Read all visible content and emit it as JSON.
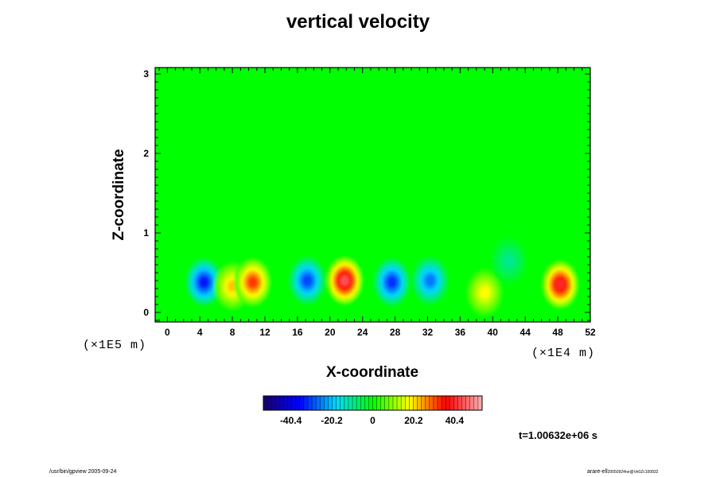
{
  "chart_data": {
    "type": "heatmap",
    "title": "vertical velocity",
    "xlabel": "X-coordinate",
    "ylabel": "Z-coordinate",
    "x_multiplier": "(×1E4 m)",
    "y_multiplier": "(×1E5 m)",
    "xlim": [
      -1.5,
      52
    ],
    "ylim": [
      -0.12,
      3.08
    ],
    "x_ticks": [
      0,
      4,
      8,
      12,
      16,
      20,
      24,
      28,
      32,
      36,
      40,
      44,
      48,
      52
    ],
    "y_ticks": [
      0,
      1,
      2,
      3
    ],
    "colorbar": {
      "ticks": [
        -40.4,
        -20.2,
        0,
        20.2,
        40.4
      ],
      "range": [
        -54,
        54
      ],
      "colors": [
        "#1a0066",
        "#0000ff",
        "#00d8ff",
        "#00ff00",
        "#ffff00",
        "#ff0000",
        "#ffb0b0"
      ]
    },
    "background_value": 0,
    "features": [
      {
        "x": 4.5,
        "z": 0.38,
        "value": -34
      },
      {
        "x": 8,
        "z": 0.33,
        "value": 22
      },
      {
        "x": 10.5,
        "z": 0.38,
        "value": 32
      },
      {
        "x": 17.2,
        "z": 0.4,
        "value": -30
      },
      {
        "x": 21.8,
        "z": 0.4,
        "value": 44
      },
      {
        "x": 27.6,
        "z": 0.38,
        "value": -32
      },
      {
        "x": 32.3,
        "z": 0.4,
        "value": -26
      },
      {
        "x": 39,
        "z": 0.25,
        "value": 18
      },
      {
        "x": 42,
        "z": 0.65,
        "value": -10
      },
      {
        "x": 48.3,
        "z": 0.35,
        "value": 40
      }
    ]
  },
  "time_label": "t=1.00632e+06 s",
  "footer": {
    "left": "/usr/bin/gpview 2005-09-24",
    "right_main": "arare-ell",
    "right_sub": "20050924ne@Ve0Zc100832"
  }
}
